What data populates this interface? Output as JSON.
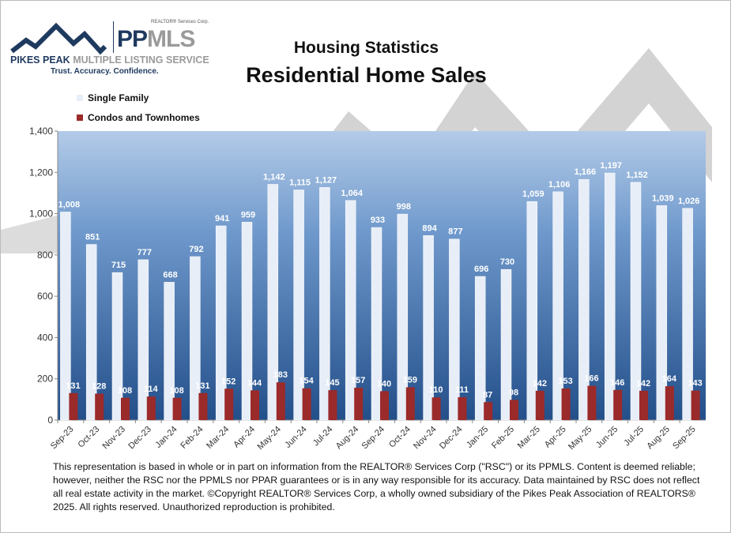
{
  "logo": {
    "realtor": "REALTOR® Services Corp.",
    "pp": "PP",
    "mls": "MLS",
    "name_bold": "PIKES PEAK",
    "name_rest": " MULTIPLE LISTING SERVICE",
    "tagline": "Trust. Accuracy. Confidence."
  },
  "colors": {
    "single_family": "#e8eef7",
    "condos": "#9b2a2a",
    "plot_top": "#b3cbe8",
    "plot_bottom": "#234f8a",
    "logo_navy": "#1f3a5f"
  },
  "chart_data": {
    "type": "bar",
    "title": "Housing Statistics",
    "subtitle": "Residential Home Sales",
    "xlabel": "",
    "ylabel": "",
    "ylim": [
      0,
      1400
    ],
    "yticks": [
      0,
      200,
      400,
      600,
      800,
      1000,
      1200,
      1400
    ],
    "ytick_labels": [
      "0",
      "200",
      "400",
      "600",
      "800",
      "1,000",
      "1,200",
      "1,400"
    ],
    "grid": false,
    "legend": "top-left",
    "categories": [
      "Sep-23",
      "Oct-23",
      "Nov-23",
      "Dec-23",
      "Jan-24",
      "Feb-24",
      "Mar-24",
      "Apr-24",
      "May-24",
      "Jun-24",
      "Jul-24",
      "Aug-24",
      "Sep-24",
      "Oct-24",
      "Nov-24",
      "Dec-24",
      "Jan-25",
      "Feb-25",
      "Mar-25",
      "Apr-25",
      "May-25",
      "Jun-25",
      "Jul-25",
      "Aug-25",
      "Sep-25"
    ],
    "series": [
      {
        "name": "Single Family",
        "values": [
          1008,
          851,
          715,
          777,
          668,
          792,
          941,
          959,
          1142,
          1115,
          1127,
          1064,
          933,
          998,
          894,
          877,
          696,
          730,
          1059,
          1106,
          1166,
          1197,
          1152,
          1039,
          1026
        ]
      },
      {
        "name": "Condos and Townhomes",
        "values": [
          131,
          128,
          108,
          114,
          108,
          131,
          152,
          144,
          183,
          154,
          145,
          157,
          140,
          159,
          110,
          111,
          87,
          98,
          142,
          153,
          166,
          146,
          142,
          164,
          143
        ]
      }
    ]
  },
  "footnote": "This representation is based in whole or in part on information from the REALTOR® Services Corp (\"RSC\") or its PPMLS. Content is deemed reliable; however, neither the RSC nor the PPMLS nor PPAR guarantees or is in any way responsible for its accuracy. Data maintained by RSC does not reflect all real estate activity in the market. ©Copyright REALTOR® Services Corp, a wholly owned subsidiary of the Pikes Peak Association of REALTORS® 2025. All rights reserved.  Unauthorized reproduction is prohibited."
}
